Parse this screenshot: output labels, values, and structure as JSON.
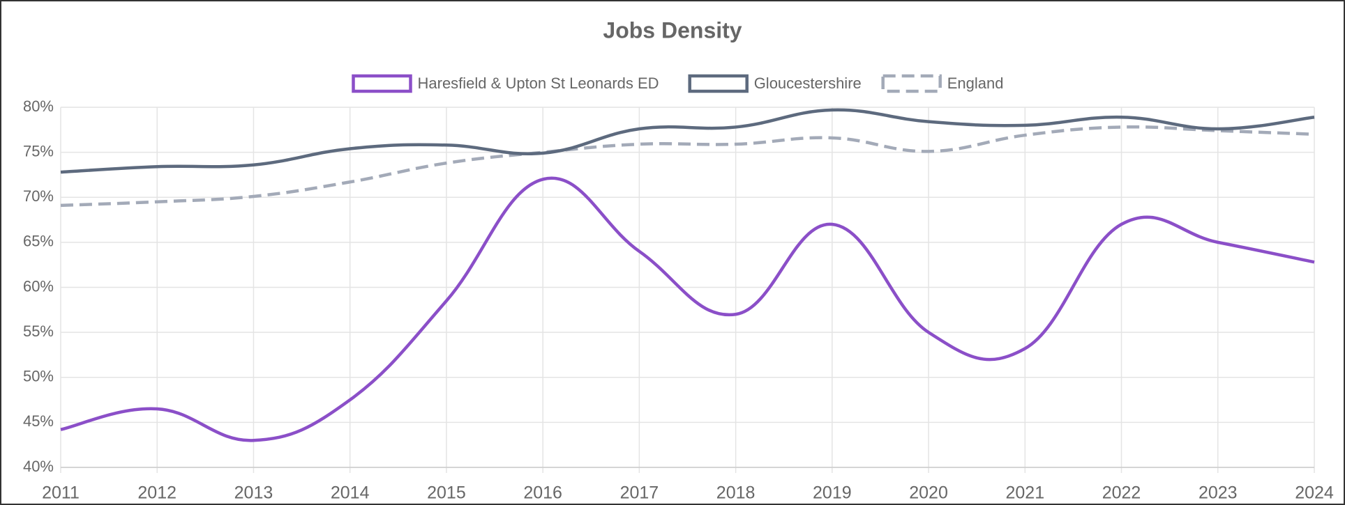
{
  "chart_data": {
    "type": "line",
    "title": "Jobs Density",
    "categories": [
      "2011",
      "2012",
      "2013",
      "2014",
      "2015",
      "2016",
      "2017",
      "2018",
      "2019",
      "2020",
      "2021",
      "2022",
      "2023",
      "2024"
    ],
    "series": [
      {
        "name": "Haresfield & Upton St Leonards ED",
        "color": "#8b4fc8",
        "dash": false,
        "values": [
          44.2,
          46.5,
          43.0,
          47.5,
          58.5,
          72.0,
          64.0,
          57.0,
          67.0,
          55.0,
          53.2,
          67.0,
          65.0,
          62.8
        ]
      },
      {
        "name": "Gloucestershire",
        "color": "#5d6a7e",
        "dash": false,
        "values": [
          72.8,
          73.4,
          73.6,
          75.4,
          75.8,
          74.9,
          77.6,
          77.8,
          79.7,
          78.4,
          78.0,
          78.9,
          77.6,
          78.9
        ]
      },
      {
        "name": "England",
        "color": "#a3aab8",
        "dash": true,
        "values": [
          69.1,
          69.5,
          70.1,
          71.7,
          73.8,
          75.0,
          75.9,
          75.9,
          76.6,
          75.1,
          76.9,
          77.8,
          77.4,
          77.0
        ]
      }
    ],
    "ylim": [
      40,
      80
    ],
    "yticks": [
      {
        "value": 40,
        "label": "40%"
      },
      {
        "value": 45,
        "label": "45%"
      },
      {
        "value": 50,
        "label": "50%"
      },
      {
        "value": 55,
        "label": "55%"
      },
      {
        "value": 60,
        "label": "60%"
      },
      {
        "value": 65,
        "label": "65%"
      },
      {
        "value": 70,
        "label": "70%"
      },
      {
        "value": 75,
        "label": "75%"
      },
      {
        "value": 80,
        "label": "80%"
      }
    ],
    "grid": true,
    "legend": "top"
  }
}
